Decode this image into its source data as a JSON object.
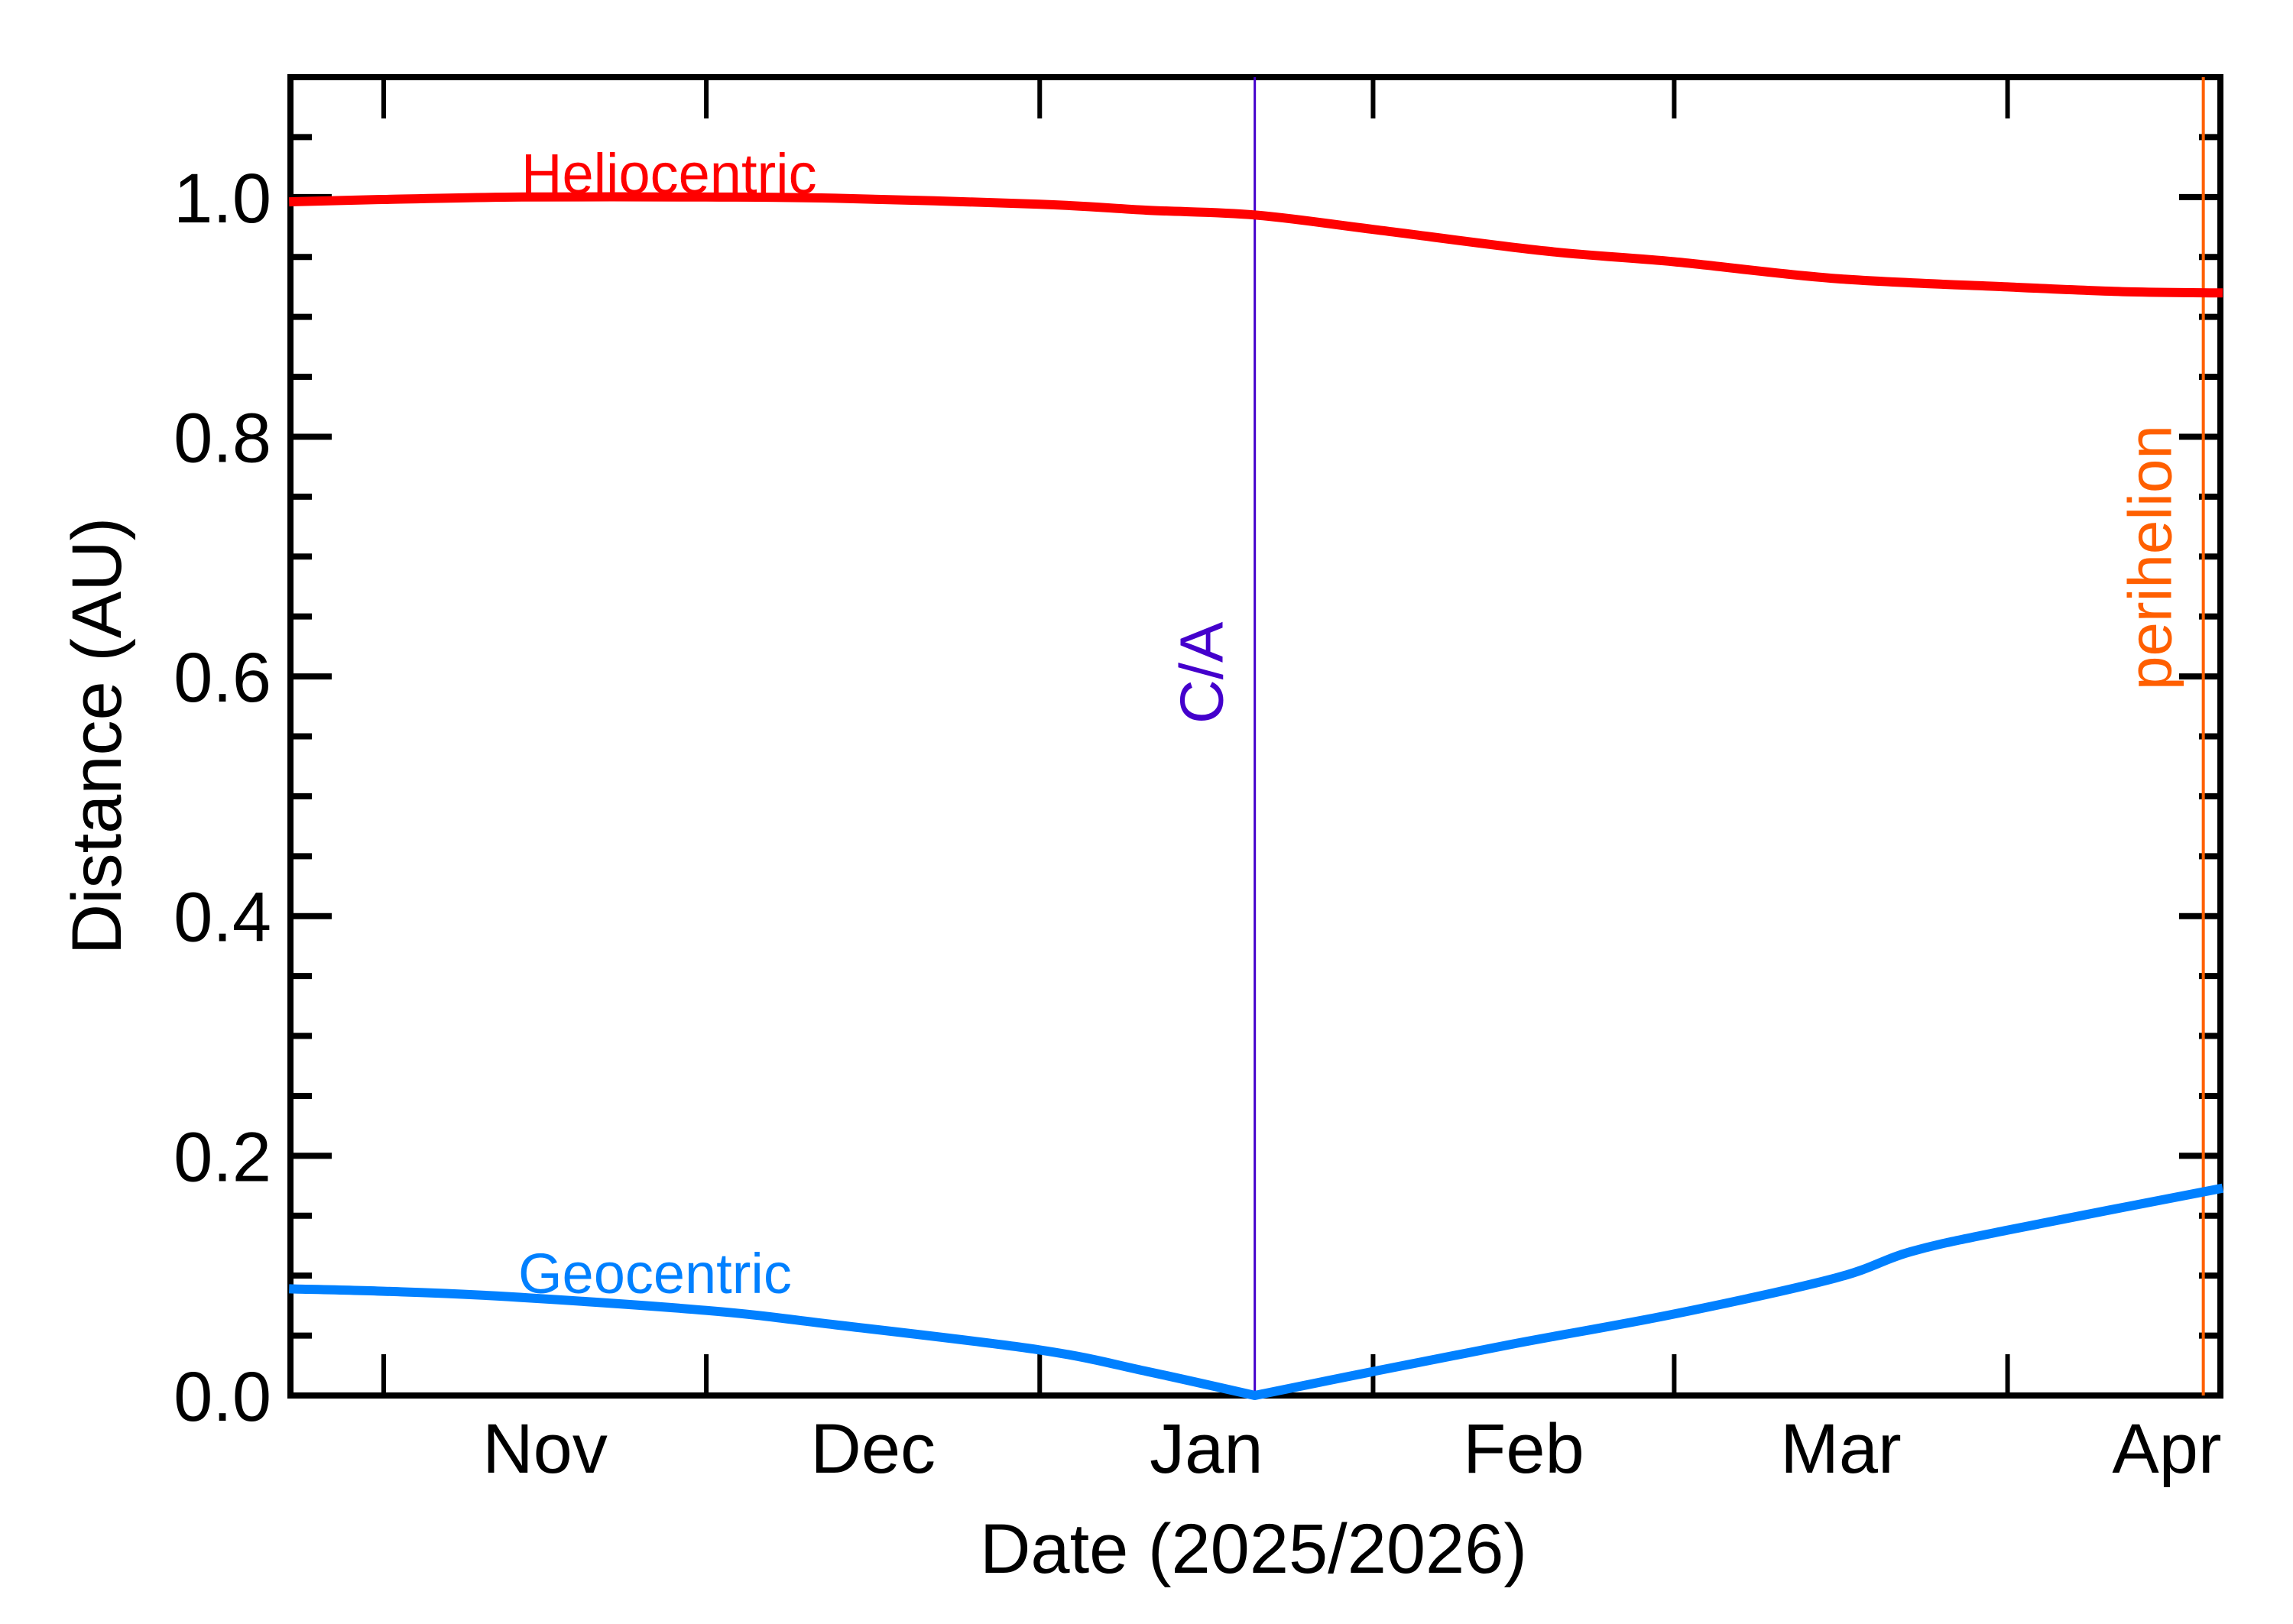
{
  "chart_data": {
    "type": "line",
    "title": "",
    "xlabel": "Date (2025/2026)",
    "ylabel": "Distance (AU)",
    "ylim": [
      0,
      1.1
    ],
    "xlim_days_from_nov1": [
      -8.8,
      171.0
    ],
    "grid": false,
    "y_ticks": [
      {
        "value": 0.0,
        "label": "0.0"
      },
      {
        "value": 0.2,
        "label": "0.2"
      },
      {
        "value": 0.4,
        "label": "0.4"
      },
      {
        "value": 0.6,
        "label": "0.6"
      },
      {
        "value": 0.8,
        "label": "0.8"
      },
      {
        "value": 1.0,
        "label": "1.0"
      }
    ],
    "y_minor_step": 0.05,
    "x_month_ticks": [
      {
        "label": "Nov",
        "day": 0,
        "days_in_month": 30
      },
      {
        "label": "Dec",
        "day": 30,
        "days_in_month": 31
      },
      {
        "label": "Jan",
        "day": 61,
        "days_in_month": 31
      },
      {
        "label": "Feb",
        "day": 92,
        "days_in_month": 28
      },
      {
        "label": "Mar",
        "day": 120,
        "days_in_month": 31
      },
      {
        "label": "Apr",
        "day": 151,
        "days_in_month": 30
      }
    ],
    "series": [
      {
        "name": "Heliocentric",
        "color": "#FF0000",
        "label_pos": {
          "day": 12.8,
          "value": 1.0
        },
        "points": [
          {
            "day": -8.8,
            "value": 0.996
          },
          {
            "day": 0,
            "value": 0.998
          },
          {
            "day": 12.8,
            "value": 1.0
          },
          {
            "day": 30,
            "value": 1.0
          },
          {
            "day": 42,
            "value": 0.999
          },
          {
            "day": 61,
            "value": 0.994
          },
          {
            "day": 71,
            "value": 0.989
          },
          {
            "day": 81,
            "value": 0.985
          },
          {
            "day": 92,
            "value": 0.973
          },
          {
            "day": 108,
            "value": 0.955
          },
          {
            "day": 120,
            "value": 0.946
          },
          {
            "day": 135,
            "value": 0.932
          },
          {
            "day": 151,
            "value": 0.925
          },
          {
            "day": 162,
            "value": 0.921
          },
          {
            "day": 171,
            "value": 0.92
          }
        ]
      },
      {
        "name": "Geocentric",
        "color": "#0080FF",
        "label_pos": {
          "day": 12.5,
          "value": 0.085
        },
        "points": [
          {
            "day": -8.8,
            "value": 0.089
          },
          {
            "day": 0,
            "value": 0.087
          },
          {
            "day": 10.5,
            "value": 0.083
          },
          {
            "day": 30,
            "value": 0.071
          },
          {
            "day": 42,
            "value": 0.059
          },
          {
            "day": 61,
            "value": 0.038
          },
          {
            "day": 71,
            "value": 0.02
          },
          {
            "day": 81,
            "value": 0.0
          },
          {
            "day": 92,
            "value": 0.02
          },
          {
            "day": 105,
            "value": 0.043
          },
          {
            "day": 120,
            "value": 0.068
          },
          {
            "day": 135,
            "value": 0.098
          },
          {
            "day": 142,
            "value": 0.12
          },
          {
            "day": 151,
            "value": 0.138
          },
          {
            "day": 171,
            "value": 0.173
          }
        ]
      }
    ],
    "vertical_markers": [
      {
        "name": "C/A",
        "day": 81,
        "color": "#4400CC"
      },
      {
        "name": "perihelion",
        "day": 169.2,
        "color": "#FF5F00"
      }
    ]
  }
}
